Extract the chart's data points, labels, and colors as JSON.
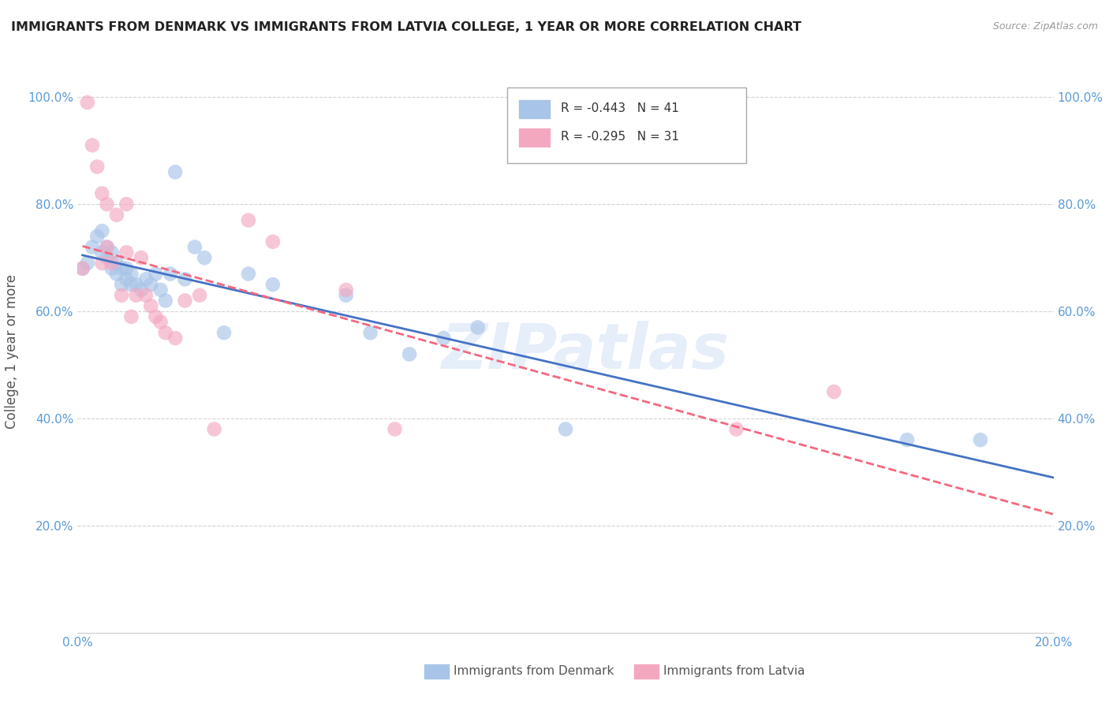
{
  "title": "IMMIGRANTS FROM DENMARK VS IMMIGRANTS FROM LATVIA COLLEGE, 1 YEAR OR MORE CORRELATION CHART",
  "source": "Source: ZipAtlas.com",
  "ylabel": "College, 1 year or more",
  "xlim": [
    0.0,
    0.2
  ],
  "ylim": [
    0.0,
    1.05
  ],
  "legend_r1": "R = -0.443",
  "legend_n1": "N = 41",
  "legend_r2": "R = -0.295",
  "legend_n2": "N = 31",
  "color_denmark": "#a8c4e8",
  "color_latvia": "#f4a8c0",
  "color_line_denmark": "#4472c4",
  "color_line_latvia": "#f4687f",
  "watermark": "ZIPatlas",
  "scatter_denmark_x": [
    0.001,
    0.002,
    0.003,
    0.004,
    0.005,
    0.005,
    0.006,
    0.006,
    0.007,
    0.007,
    0.008,
    0.008,
    0.009,
    0.009,
    0.01,
    0.01,
    0.011,
    0.011,
    0.012,
    0.013,
    0.014,
    0.015,
    0.016,
    0.017,
    0.018,
    0.019,
    0.02,
    0.022,
    0.024,
    0.026,
    0.03,
    0.035,
    0.04,
    0.055,
    0.06,
    0.068,
    0.075,
    0.082,
    0.1,
    0.17,
    0.185
  ],
  "scatter_denmark_y": [
    0.68,
    0.69,
    0.72,
    0.74,
    0.71,
    0.75,
    0.7,
    0.72,
    0.68,
    0.71,
    0.67,
    0.69,
    0.65,
    0.68,
    0.66,
    0.68,
    0.65,
    0.67,
    0.65,
    0.64,
    0.66,
    0.65,
    0.67,
    0.64,
    0.62,
    0.67,
    0.86,
    0.66,
    0.72,
    0.7,
    0.56,
    0.67,
    0.65,
    0.63,
    0.56,
    0.52,
    0.55,
    0.57,
    0.38,
    0.36,
    0.36
  ],
  "scatter_latvia_x": [
    0.001,
    0.002,
    0.003,
    0.004,
    0.005,
    0.005,
    0.006,
    0.006,
    0.007,
    0.008,
    0.009,
    0.01,
    0.01,
    0.011,
    0.012,
    0.013,
    0.014,
    0.015,
    0.016,
    0.017,
    0.018,
    0.02,
    0.022,
    0.025,
    0.028,
    0.035,
    0.04,
    0.055,
    0.065,
    0.135,
    0.155
  ],
  "scatter_latvia_y": [
    0.68,
    0.99,
    0.91,
    0.87,
    0.82,
    0.69,
    0.8,
    0.72,
    0.69,
    0.78,
    0.63,
    0.71,
    0.8,
    0.59,
    0.63,
    0.7,
    0.63,
    0.61,
    0.59,
    0.58,
    0.56,
    0.55,
    0.62,
    0.63,
    0.38,
    0.77,
    0.73,
    0.64,
    0.38,
    0.38,
    0.45
  ]
}
